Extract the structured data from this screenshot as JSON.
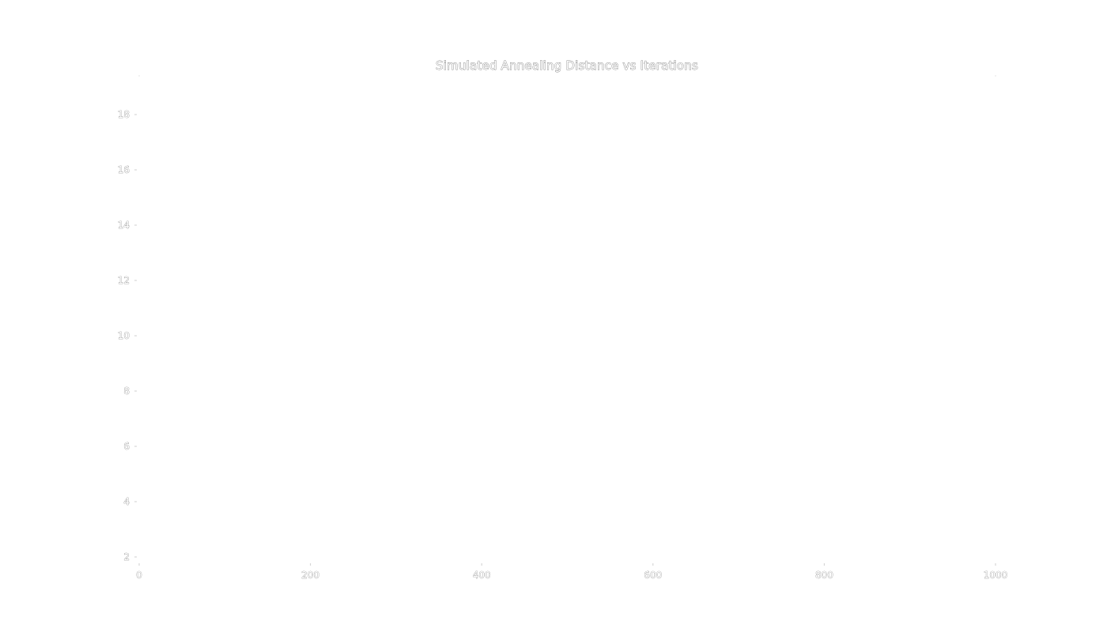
{
  "chart_data": {
    "type": "line",
    "title": "Simulated Annealing Distance vs Iterations",
    "xlabel": "",
    "ylabel": "",
    "xlim": [
      0,
      1000
    ],
    "ylim": [
      2,
      19
    ],
    "x_ticks": [
      0,
      200,
      400,
      600,
      800,
      1000
    ],
    "y_ticks": [
      2,
      4,
      6,
      8,
      10,
      12,
      14,
      16,
      18
    ],
    "x_tick_labels": [
      "0",
      "200",
      "400",
      "600",
      "800",
      "1000"
    ],
    "y_tick_labels": [
      "2",
      "4",
      "6",
      "8",
      "10",
      "12",
      "14",
      "16",
      "18"
    ],
    "grid": false,
    "series": []
  }
}
